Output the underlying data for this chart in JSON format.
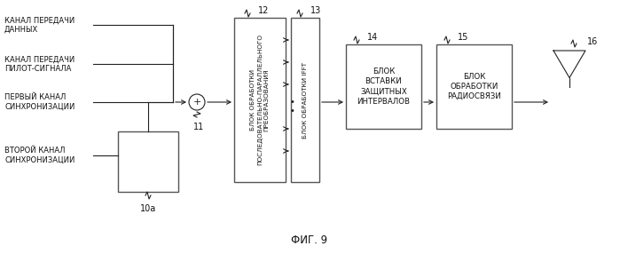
{
  "bg_color": "#ffffff",
  "line_color": "#222222",
  "box_edge": "#555555",
  "title": "ФИГ. 9",
  "labels_left": [
    "КАНАЛ ПЕРЕДАЧИ\nДАННЫХ",
    "КАНАЛ ПЕРЕДАЧИ\nПИЛОТ-СИГНАЛА",
    "ПЕРВЫЙ КАНАЛ\nСИНХРОНИЗАЦИИ",
    "ВТОРОЙ КАНАЛ\nСИНХРОНИЗАЦИИ"
  ],
  "block12_label": "БЛОК ОБРАБОТКИ\nПОСЛЕДОВАТЕЛЬНО-ПАРАЛЛЕЛЬНОГО\nПРЕОБРАЗОВАНИЯ",
  "block13_label": "БЛОК ОБРАБОТКИ IFFT",
  "block14_label": "БЛОК\nВСТАВКИ\nЗАЩИТНЫХ\nИНТЕРВАЛОВ",
  "block15_label": "БЛОК\nОБРАБОТКИ\nРАДИОСВЯЗИ",
  "num_10a": "10a",
  "num_11": "11",
  "num_12": "12",
  "num_13": "13",
  "num_14": "14",
  "num_15": "15",
  "num_16": "16"
}
